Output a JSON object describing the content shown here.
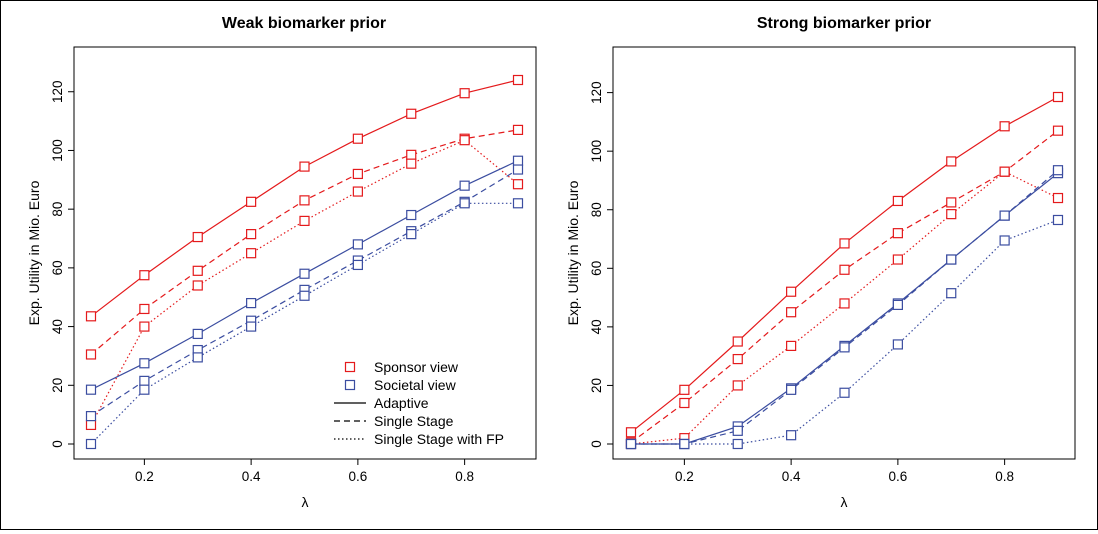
{
  "colors": {
    "sponsor": "#e41a1c",
    "societal": "#3b4da0",
    "axis": "#000000"
  },
  "chart_data": [
    {
      "type": "line",
      "title": "Weak biomarker prior",
      "xlabel": "λ",
      "ylabel": "Exp. Utility in Mio. Euro",
      "xlim": [
        0.1,
        0.9
      ],
      "ylim": [
        0,
        124
      ],
      "xticks": [
        0.2,
        0.4,
        0.6,
        0.8
      ],
      "yticks": [
        0,
        20,
        40,
        60,
        80,
        100,
        120
      ],
      "x": [
        0.1,
        0.2,
        0.3,
        0.4,
        0.5,
        0.6,
        0.7,
        0.8,
        0.9
      ],
      "series": [
        {
          "group": "sponsor",
          "style": "solid",
          "values": [
            43.5,
            57.5,
            70.5,
            82.5,
            94.5,
            104,
            112.5,
            119.5,
            124
          ]
        },
        {
          "group": "sponsor",
          "style": "dashed",
          "values": [
            30.5,
            46,
            59,
            71.5,
            83,
            92,
            98.5,
            104,
            107
          ]
        },
        {
          "group": "sponsor",
          "style": "dotted",
          "values": [
            6.5,
            40,
            54,
            65,
            76,
            86,
            95.5,
            103.5,
            88.5
          ]
        },
        {
          "group": "societal",
          "style": "solid",
          "values": [
            18.5,
            27.5,
            37.5,
            48,
            58,
            68,
            78,
            88,
            96.5
          ]
        },
        {
          "group": "societal",
          "style": "dashed",
          "values": [
            9.5,
            21.5,
            32,
            42,
            52.5,
            62.5,
            72.5,
            82.5,
            93.5
          ]
        },
        {
          "group": "societal",
          "style": "dotted",
          "values": [
            0,
            18.5,
            29.5,
            40,
            50.5,
            61,
            71.5,
            82,
            82
          ]
        }
      ],
      "legend": {
        "placement": "bottom-right",
        "entries": [
          {
            "label": "Sponsor view",
            "kind": "marker",
            "group": "sponsor"
          },
          {
            "label": "Societal view",
            "kind": "marker",
            "group": "societal"
          },
          {
            "label": "Adaptive",
            "kind": "line",
            "style": "solid"
          },
          {
            "label": "Single Stage",
            "kind": "line",
            "style": "dashed"
          },
          {
            "label": "Single Stage with FP",
            "kind": "line",
            "style": "dotted"
          }
        ]
      }
    },
    {
      "type": "line",
      "title": "Strong biomarker prior",
      "xlabel": "λ",
      "ylabel": "Exp. Utility in Mio. Euro",
      "xlim": [
        0.1,
        0.9
      ],
      "ylim": [
        0,
        118.5
      ],
      "xticks": [
        0.2,
        0.4,
        0.6,
        0.8
      ],
      "yticks": [
        0,
        20,
        40,
        60,
        80,
        100,
        120
      ],
      "x": [
        0.1,
        0.2,
        0.3,
        0.4,
        0.5,
        0.6,
        0.7,
        0.8,
        0.9
      ],
      "series": [
        {
          "group": "sponsor",
          "style": "solid",
          "values": [
            4,
            18.5,
            35,
            52,
            68.5,
            83,
            96.5,
            108.5,
            118.5
          ]
        },
        {
          "group": "sponsor",
          "style": "dashed",
          "values": [
            0.5,
            14,
            29,
            45,
            59.5,
            72,
            82.5,
            93,
            107
          ]
        },
        {
          "group": "sponsor",
          "style": "dotted",
          "values": [
            0,
            2,
            20,
            33.5,
            48,
            63,
            78.5,
            93,
            84
          ]
        },
        {
          "group": "societal",
          "style": "solid",
          "values": [
            0,
            0,
            6,
            19,
            33.5,
            48,
            63,
            78,
            92.5
          ]
        },
        {
          "group": "societal",
          "style": "dashed",
          "values": [
            0,
            0,
            4.5,
            18.5,
            33,
            47.5,
            63,
            78,
            93.5
          ]
        },
        {
          "group": "societal",
          "style": "dotted",
          "values": [
            0,
            0,
            0,
            3,
            17.5,
            34,
            51.5,
            69.5,
            76.5
          ]
        }
      ]
    }
  ]
}
